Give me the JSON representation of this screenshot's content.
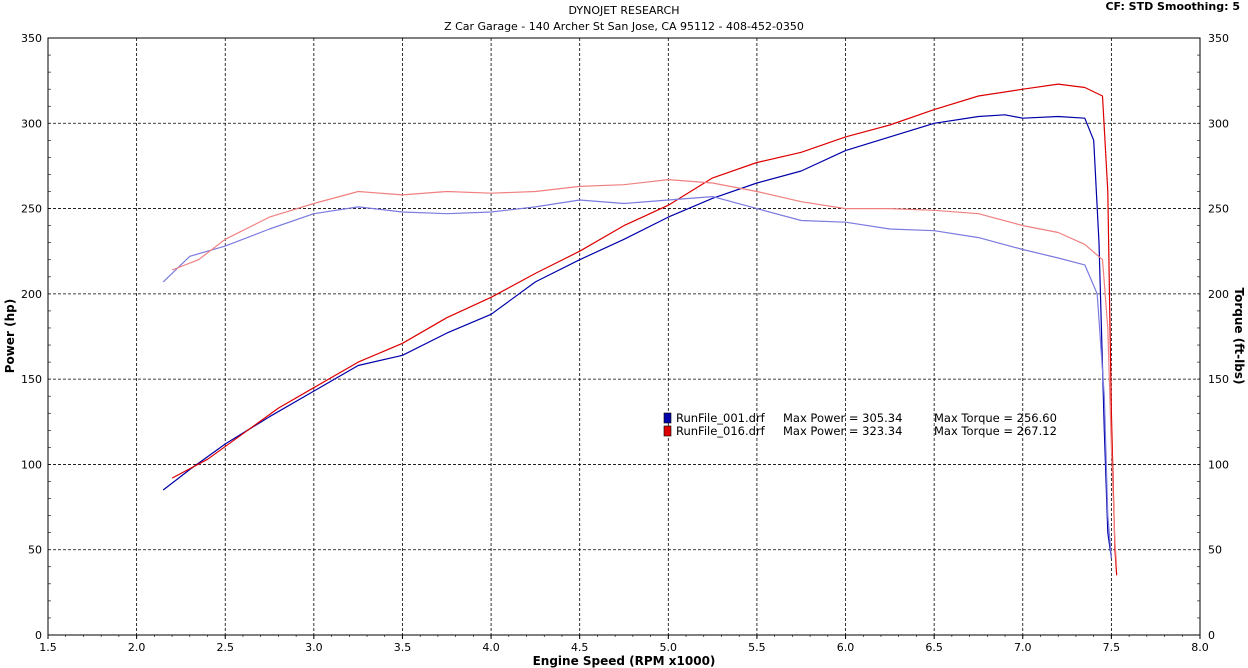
{
  "header": {
    "title": "DYNOJET RESEARCH",
    "subtitle": "Z Car Garage - 140 Archer St San Jose, CA 95112 - 408-452-0350",
    "settings": "CF: STD  Smoothing: 5"
  },
  "chart_data": {
    "type": "line",
    "title": "DYNOJET RESEARCH",
    "xlabel": "Engine Speed (RPM x1000)",
    "ylabel_left": "Power (hp)",
    "ylabel_right": "Torque (ft-lbs)",
    "xlim": [
      1.5,
      8.0
    ],
    "ylim": [
      0,
      350
    ],
    "y2lim": [
      0,
      350
    ],
    "x_ticks": [
      "1.5",
      "2.0",
      "2.5",
      "3.0",
      "3.5",
      "4.0",
      "4.5",
      "5.0",
      "5.5",
      "6.0",
      "6.5",
      "7.0",
      "7.5",
      "8.0"
    ],
    "y_ticks": [
      "0",
      "50",
      "100",
      "150",
      "200",
      "250",
      "300",
      "350"
    ],
    "grid": true,
    "legend_position": "center-right",
    "legend": [
      {
        "run": "RunFile_001.drf",
        "max_power_label": "Max Power = 305.34",
        "max_torque_label": "Max Torque = 256.60",
        "color": "#0000aa"
      },
      {
        "run": "RunFile_016.drf",
        "max_power_label": "Max Power = 323.34",
        "max_torque_label": "Max Torque = 267.12",
        "color": "#dd0000"
      }
    ],
    "series": [
      {
        "name": "RunFile_001.drf",
        "quantity": "Power (hp)",
        "color": "#0000aa",
        "x": [
          2.15,
          2.3,
          2.5,
          2.75,
          3.0,
          3.25,
          3.5,
          3.75,
          4.0,
          4.25,
          4.5,
          4.75,
          5.0,
          5.25,
          5.5,
          5.75,
          6.0,
          6.25,
          6.5,
          6.75,
          6.9,
          7.0,
          7.2,
          7.35,
          7.4,
          7.43,
          7.46,
          7.48,
          7.5
        ],
        "y": [
          85,
          97,
          112,
          128,
          143,
          158,
          164,
          177,
          188,
          207,
          220,
          232,
          245,
          256,
          265,
          272,
          284,
          292,
          300,
          304,
          305,
          303,
          304,
          303,
          290,
          230,
          120,
          60,
          45
        ]
      },
      {
        "name": "RunFile_016.drf",
        "quantity": "Power (hp)",
        "color": "#dd0000",
        "x": [
          2.2,
          2.4,
          2.6,
          2.8,
          3.0,
          3.25,
          3.5,
          3.75,
          4.0,
          4.25,
          4.5,
          4.75,
          5.0,
          5.25,
          5.5,
          5.75,
          6.0,
          6.25,
          6.5,
          6.75,
          7.0,
          7.2,
          7.35,
          7.45,
          7.48,
          7.5,
          7.52,
          7.53
        ],
        "y": [
          92,
          103,
          118,
          133,
          145,
          160,
          171,
          186,
          198,
          212,
          225,
          240,
          252,
          268,
          277,
          283,
          292,
          299,
          308,
          316,
          320,
          323,
          321,
          316,
          260,
          130,
          50,
          35
        ]
      },
      {
        "name": "RunFile_001.drf",
        "quantity": "Torque (ft-lbs)",
        "color": "#7b7be0",
        "x": [
          2.15,
          2.3,
          2.5,
          2.75,
          3.0,
          3.25,
          3.5,
          3.75,
          4.0,
          4.25,
          4.5,
          4.75,
          5.0,
          5.25,
          5.5,
          5.75,
          6.0,
          6.25,
          6.5,
          6.75,
          7.0,
          7.2,
          7.35,
          7.42,
          7.46,
          7.48,
          7.5
        ],
        "y": [
          207,
          222,
          228,
          238,
          247,
          251,
          248,
          247,
          248,
          251,
          255,
          253,
          255,
          257,
          250,
          243,
          242,
          238,
          237,
          233,
          226,
          221,
          217,
          200,
          140,
          70,
          45
        ]
      },
      {
        "name": "RunFile_016.drf",
        "quantity": "Torque (ft-lbs)",
        "color": "#f08080",
        "x": [
          2.2,
          2.35,
          2.5,
          2.75,
          3.0,
          3.25,
          3.5,
          3.75,
          4.0,
          4.25,
          4.5,
          4.75,
          5.0,
          5.25,
          5.5,
          5.75,
          6.0,
          6.25,
          6.5,
          6.75,
          7.0,
          7.2,
          7.35,
          7.45,
          7.48,
          7.5,
          7.52,
          7.53
        ],
        "y": [
          214,
          220,
          232,
          245,
          253,
          260,
          258,
          260,
          259,
          260,
          263,
          264,
          267,
          265,
          260,
          254,
          250,
          250,
          249,
          247,
          240,
          236,
          229,
          220,
          180,
          110,
          55,
          40
        ]
      }
    ]
  }
}
